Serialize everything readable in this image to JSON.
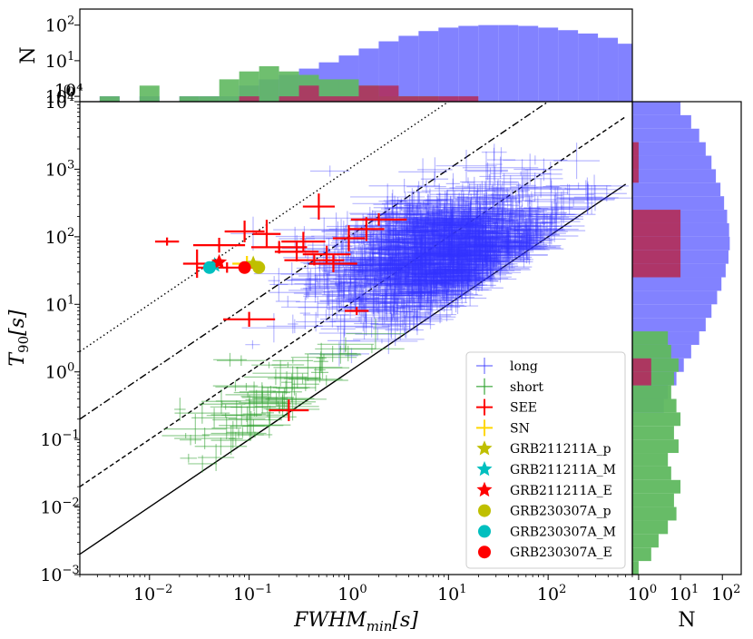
{
  "chart_data": {
    "type": "scatter",
    "xlabel": "FWHM_min[s]",
    "ylabel": "T90[s]",
    "xscale": "log",
    "yscale": "log",
    "xlim": [
      0.002,
      700
    ],
    "ylim": [
      0.001,
      10000
    ],
    "x_ticks": [
      {
        "value": 0.01,
        "base": "10",
        "exp": "−2"
      },
      {
        "value": 0.1,
        "base": "10",
        "exp": "−1"
      },
      {
        "value": 1,
        "base": "10",
        "exp": "0"
      },
      {
        "value": 10,
        "base": "10",
        "exp": "1"
      },
      {
        "value": 100,
        "base": "10",
        "exp": "2"
      }
    ],
    "y_ticks": [
      {
        "value": 0.001,
        "base": "10",
        "exp": "−3"
      },
      {
        "value": 0.01,
        "base": "10",
        "exp": "−2"
      },
      {
        "value": 0.1,
        "base": "10",
        "exp": "−1"
      },
      {
        "value": 1,
        "base": "10",
        "exp": "0"
      },
      {
        "value": 10,
        "base": "10",
        "exp": "1"
      },
      {
        "value": 100,
        "base": "10",
        "exp": "2"
      },
      {
        "value": 1000,
        "base": "10",
        "exp": "3"
      },
      {
        "value": 10000,
        "base": "10",
        "exp": "4"
      }
    ],
    "reference_lines": [
      {
        "name": "T90 = FWHM",
        "style": "solid",
        "ratio": 1
      },
      {
        "name": "T90 = 10 FWHM",
        "style": "dashed",
        "ratio": 10
      },
      {
        "name": "T90 = 100 FWHM",
        "style": "dashdot",
        "ratio": 100
      },
      {
        "name": "T90 = 1000 FWHM",
        "style": "dotted",
        "ratio": 1000
      }
    ],
    "series": [
      {
        "name": "long",
        "color": "#3333ff",
        "marker": "errorbar",
        "count": 1500,
        "center_log10": {
          "x": 0.9,
          "y": 1.75
        },
        "spread_log10": {
          "x": 0.55,
          "y": 0.45
        }
      },
      {
        "name": "short",
        "color": "#2ca02c",
        "marker": "errorbar",
        "count": 90,
        "center_log10": {
          "x": -0.85,
          "y": -0.6
        },
        "spread_log10": {
          "x": 0.45,
          "y": 0.4
        }
      },
      {
        "name": "SEE",
        "color": "#ff0000",
        "marker": "errorbar",
        "points": [
          [
            0.015,
            85
          ],
          [
            0.05,
            75
          ],
          [
            0.09,
            120
          ],
          [
            0.15,
            110
          ],
          [
            0.2,
            70
          ],
          [
            0.3,
            60
          ],
          [
            0.5,
            280
          ],
          [
            0.45,
            45
          ],
          [
            0.7,
            40
          ],
          [
            1.5,
            130
          ],
          [
            1.2,
            8
          ],
          [
            0.1,
            6
          ],
          [
            0.25,
            0.27
          ],
          [
            0.03,
            40
          ],
          [
            2,
            180
          ],
          [
            0.35,
            85
          ],
          [
            1.0,
            95
          ],
          [
            0.06,
            35
          ],
          [
            0.6,
            55
          ]
        ]
      },
      {
        "name": "SN",
        "color": "#ffd700",
        "marker": "errorbar",
        "points": [
          [
            0.095,
            40
          ]
        ]
      },
      {
        "name": "GRB211211A_p",
        "color": "#bfbf00",
        "marker": "star",
        "points": [
          [
            0.11,
            40
          ]
        ]
      },
      {
        "name": "GRB211211A_M",
        "color": "#00bfbf",
        "marker": "star",
        "points": [
          [
            0.045,
            38
          ]
        ]
      },
      {
        "name": "GRB211211A_E",
        "color": "#ff0000",
        "marker": "star",
        "points": [
          [
            0.05,
            42
          ]
        ]
      },
      {
        "name": "GRB230307A_p",
        "color": "#bfbf00",
        "marker": "circle",
        "points": [
          [
            0.125,
            35
          ]
        ]
      },
      {
        "name": "GRB230307A_M",
        "color": "#00bfbf",
        "marker": "circle",
        "points": [
          [
            0.04,
            35
          ]
        ]
      },
      {
        "name": "GRB230307A_E",
        "color": "#ff0000",
        "marker": "circle",
        "points": [
          [
            0.09,
            35
          ]
        ]
      }
    ],
    "top_histogram": {
      "ylabel": "N",
      "yscale": "log",
      "y_ticks": [
        {
          "value": 100,
          "base": "10",
          "exp": "2"
        },
        {
          "value": 10,
          "base": "10",
          "exp": "1"
        },
        {
          "value": 1,
          "base": "10",
          "exp": "0"
        }
      ],
      "corner_labels": [
        "10⁴",
        "0"
      ],
      "series": [
        {
          "name": "long",
          "color": "#7b7bff",
          "log10_edges_start": -2.5,
          "bin_width": 0.2,
          "counts": [
            1,
            0,
            1,
            0,
            1,
            1,
            1,
            2,
            3,
            4,
            6,
            9,
            14,
            22,
            35,
            50,
            68,
            85,
            95,
            100,
            100,
            95,
            85,
            72,
            58,
            44,
            30,
            18,
            8,
            3,
            1,
            0,
            0,
            1,
            1
          ]
        },
        {
          "name": "short",
          "color": "#5fb85f",
          "log10_edges_start": -2.5,
          "bin_width": 0.2,
          "counts": [
            1,
            0,
            2,
            0,
            1,
            1,
            3,
            5,
            7,
            5,
            4,
            3,
            3,
            2,
            1,
            1,
            1
          ]
        },
        {
          "name": "SEE",
          "color": "#b03060",
          "log10_edges_start": -2.5,
          "bin_width": 0.2,
          "counts": [
            0,
            0,
            0,
            0,
            0,
            0,
            0,
            1,
            0,
            1,
            2,
            1,
            1,
            2,
            2,
            1,
            1,
            1,
            1
          ]
        }
      ]
    },
    "right_histogram": {
      "xlabel": "N",
      "xscale": "log",
      "x_ticks": [
        {
          "value": 1,
          "base": "10",
          "exp": "0"
        },
        {
          "value": 10,
          "base": "10",
          "exp": "1"
        },
        {
          "value": 100,
          "base": "10",
          "exp": "2"
        }
      ],
      "series": [
        {
          "name": "long",
          "color": "#7b7bff",
          "log10_edges_start": -0.6,
          "bin_width": 0.2,
          "counts": [
            4,
            5,
            8,
            12,
            18,
            28,
            40,
            55,
            75,
            95,
            120,
            140,
            150,
            145,
            130,
            110,
            90,
            70,
            55,
            40,
            28,
            18,
            10,
            5,
            2
          ]
        },
        {
          "name": "short",
          "color": "#5fb85f",
          "log10_edges_start": -3.0,
          "bin_width": 0.2,
          "counts": [
            1,
            2,
            3,
            5,
            8,
            7,
            10,
            6,
            5,
            9,
            7,
            10,
            8,
            6,
            7,
            9,
            6,
            5
          ]
        },
        {
          "name": "SEE",
          "color": "#b03060",
          "log10_edges_start": -0.6,
          "bin_width": 0.2,
          "counts": [
            0,
            0,
            2,
            2,
            0,
            0,
            0,
            0,
            0,
            0,
            10,
            10,
            10,
            10,
            10,
            0,
            0,
            1,
            1,
            1
          ]
        }
      ]
    },
    "legend": {
      "position": "lower-right",
      "entries": [
        "long",
        "short",
        "SEE",
        "SN",
        "GRB211211A_p",
        "GRB211211A_M",
        "GRB211211A_E",
        "GRB230307A_p",
        "GRB230307A_M",
        "GRB230307A_E"
      ]
    }
  }
}
